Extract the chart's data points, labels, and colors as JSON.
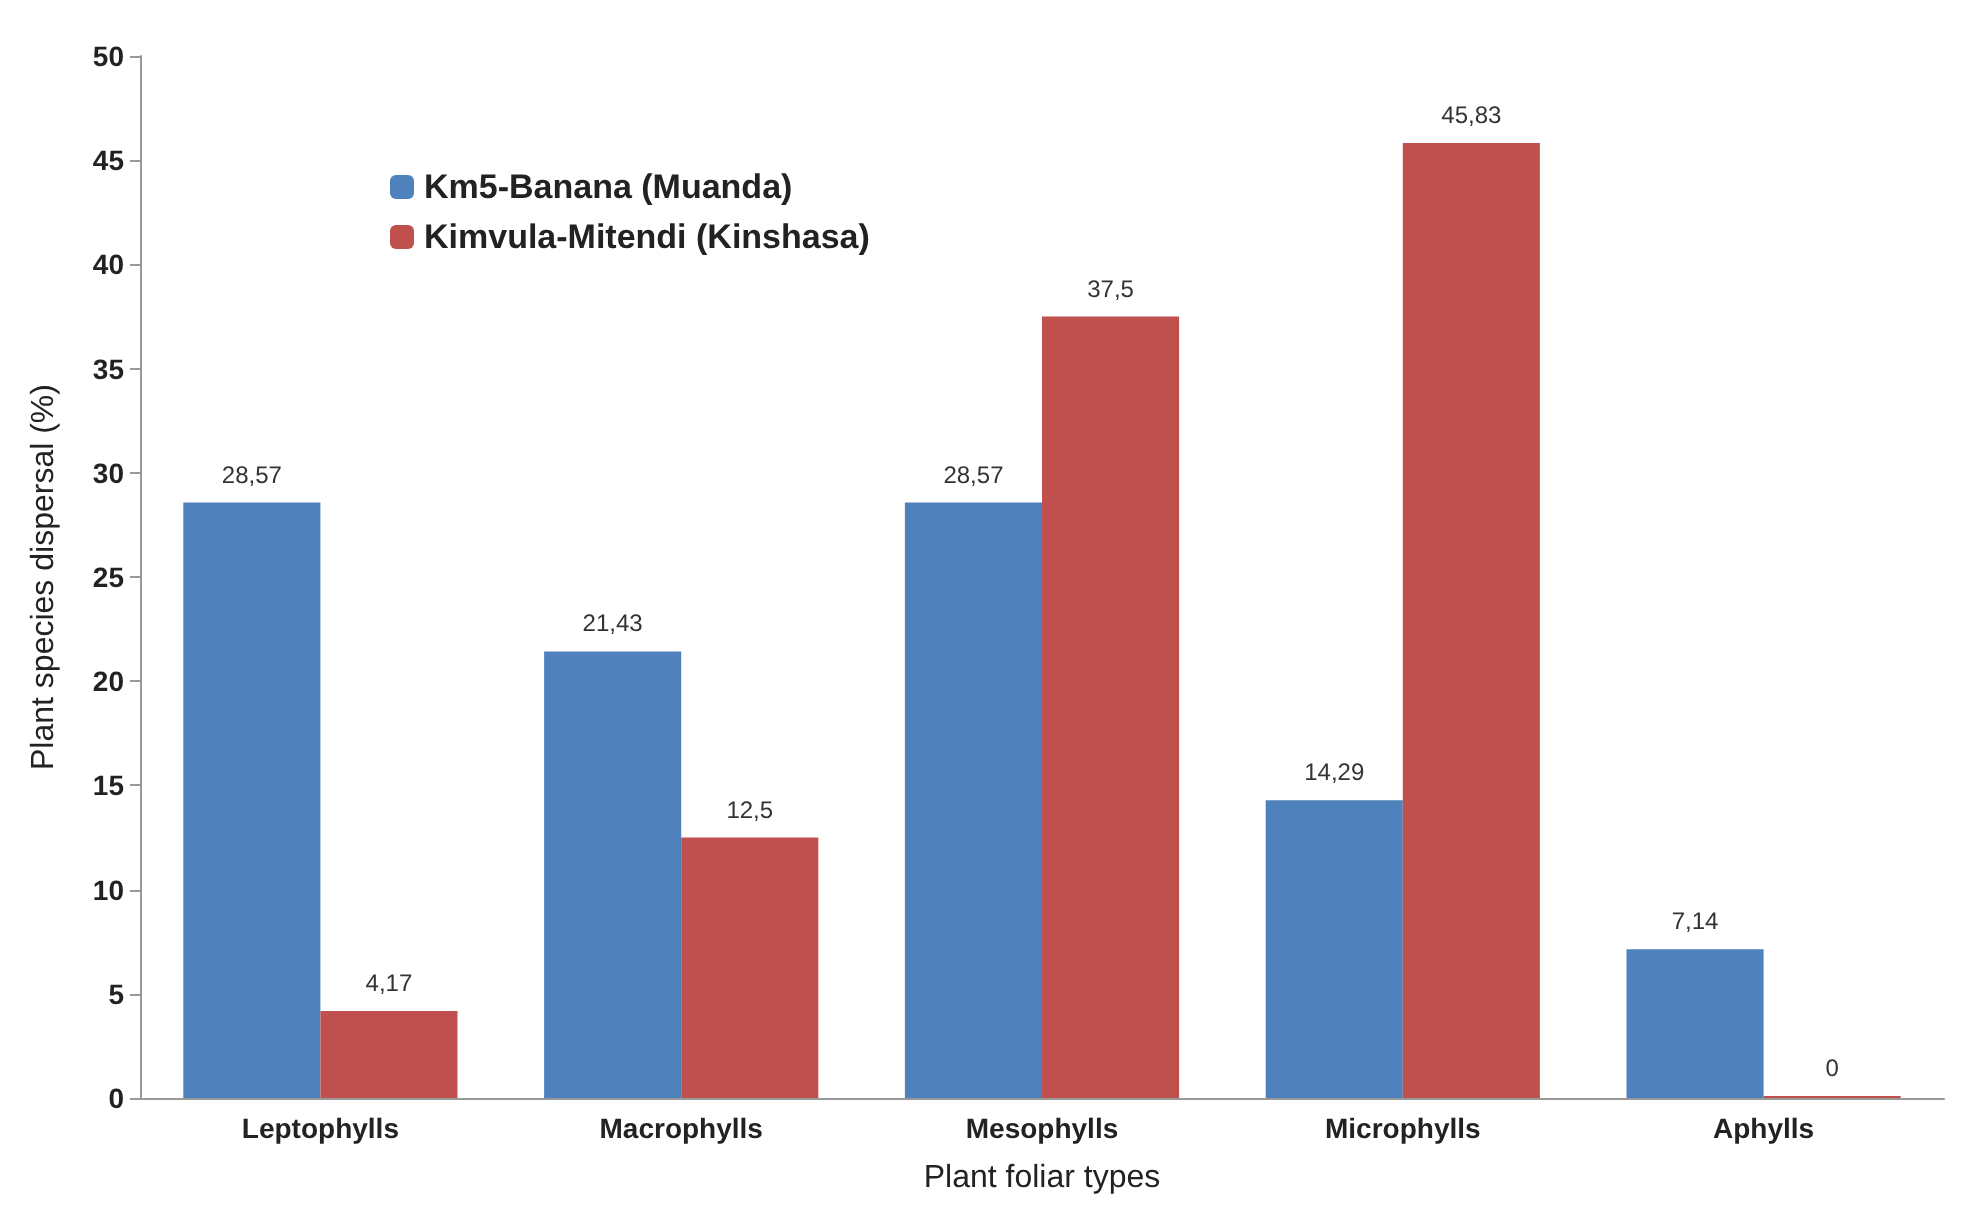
{
  "chart_data": {
    "type": "bar",
    "xlabel": "Plant foliar types",
    "ylabel": "Plant species dispersal (%)",
    "categories": [
      "Leptophylls",
      "Macrophylls",
      "Mesophylls",
      "Microphylls",
      "Aphylls"
    ],
    "series": [
      {
        "name": "Km5-Banana (Muanda)",
        "color": "#4f81bd",
        "values": [
          28.57,
          21.43,
          28.57,
          14.29,
          7.14
        ],
        "value_labels": [
          "28,57",
          "21,43",
          "28,57",
          "14,29",
          "7,14"
        ]
      },
      {
        "name": "Kimvula-Mitendi (Kinshasa)",
        "color": "#c0504d",
        "values": [
          4.17,
          12.5,
          37.5,
          45.83,
          0
        ],
        "value_labels": [
          "4,17",
          "12,5",
          "37,5",
          "45,83",
          "0"
        ]
      }
    ],
    "ylim": [
      0,
      50
    ],
    "yticks": [
      0,
      5,
      10,
      15,
      20,
      25,
      30,
      35,
      40,
      45,
      50
    ],
    "grid": false,
    "legend": "top left"
  }
}
